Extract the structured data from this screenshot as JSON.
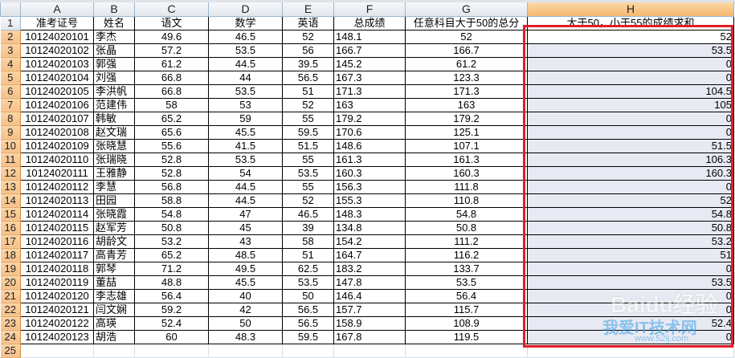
{
  "columns": [
    "A",
    "B",
    "C",
    "D",
    "E",
    "F",
    "G",
    "H"
  ],
  "selected_column": "H",
  "headers": [
    "准考证号",
    "姓名",
    "语文",
    "数学",
    "英语",
    "总成绩",
    "任意科目大于50的总分",
    "大于50，小于55的成绩求和"
  ],
  "rows": [
    [
      "10124020101",
      "李杰",
      "49.6",
      "46.5",
      "52",
      "148.1",
      "52",
      "52"
    ],
    [
      "10124020102",
      "张晶",
      "57.2",
      "53.5",
      "56",
      "166.7",
      "166.7",
      "53.5"
    ],
    [
      "10124020103",
      "郭强",
      "61.2",
      "44.5",
      "39.5",
      "145.2",
      "61.2",
      "0"
    ],
    [
      "10124020104",
      "刘强",
      "66.8",
      "44",
      "56.5",
      "167.3",
      "123.3",
      "0"
    ],
    [
      "10124020105",
      "李洪帆",
      "66.8",
      "53.5",
      "51",
      "171.3",
      "171.3",
      "104.5"
    ],
    [
      "10124020106",
      "范建伟",
      "58",
      "53",
      "52",
      "163",
      "163",
      "105"
    ],
    [
      "10124020107",
      "韩敏",
      "65.2",
      "59",
      "55",
      "179.2",
      "179.2",
      "0"
    ],
    [
      "10124020108",
      "赵文瑞",
      "65.6",
      "45.5",
      "59.5",
      "170.6",
      "125.1",
      "0"
    ],
    [
      "10124020109",
      "张晓慧",
      "55.6",
      "41.5",
      "51.5",
      "148.6",
      "107.1",
      "51.5"
    ],
    [
      "10124020110",
      "张瑞晓",
      "52.8",
      "53.5",
      "55",
      "161.3",
      "161.3",
      "106.3"
    ],
    [
      "10124020111",
      "王雅静",
      "52.8",
      "54",
      "53.5",
      "160.3",
      "160.3",
      "160.3"
    ],
    [
      "10124020112",
      "李慧",
      "56.8",
      "44.5",
      "55",
      "156.3",
      "111.8",
      "0"
    ],
    [
      "10124020113",
      "田园",
      "58.8",
      "44.5",
      "52",
      "155.3",
      "110.8",
      "52"
    ],
    [
      "10124020114",
      "张晓霞",
      "54.8",
      "47",
      "46.5",
      "148.3",
      "54.8",
      "54.8"
    ],
    [
      "10124020115",
      "赵军芳",
      "50.8",
      "45",
      "39",
      "134.8",
      "50.8",
      "50.8"
    ],
    [
      "10124020116",
      "胡龄文",
      "53.2",
      "43",
      "58",
      "154.2",
      "111.2",
      "53.2"
    ],
    [
      "10124020117",
      "高青芳",
      "65.2",
      "48.5",
      "51",
      "164.7",
      "116.2",
      "51"
    ],
    [
      "10124020118",
      "郭琴",
      "71.2",
      "49.5",
      "62.5",
      "183.2",
      "133.7",
      "0"
    ],
    [
      "10124020119",
      "董喆",
      "48.8",
      "45.5",
      "53.5",
      "147.8",
      "53.5",
      "53.5"
    ],
    [
      "10124020120",
      "李志雄",
      "56.4",
      "40",
      "50",
      "146.4",
      "56.4",
      "0"
    ],
    [
      "10124020121",
      "闫文娴",
      "59.2",
      "42",
      "56.5",
      "157.7",
      "115.7",
      "0"
    ],
    [
      "10124020122",
      "高瑛",
      "52.4",
      "50",
      "56.5",
      "158.9",
      "108.9",
      "52.4"
    ],
    [
      "10124020123",
      "胡浩",
      "60",
      "48.3",
      "59.5",
      "167.8",
      "119.5",
      "0"
    ]
  ],
  "highlight_color": "#e41c24",
  "watermark": {
    "brand": "Baidu经验",
    "site": "我爱IT技术网",
    "url": "www.52ij.com"
  }
}
